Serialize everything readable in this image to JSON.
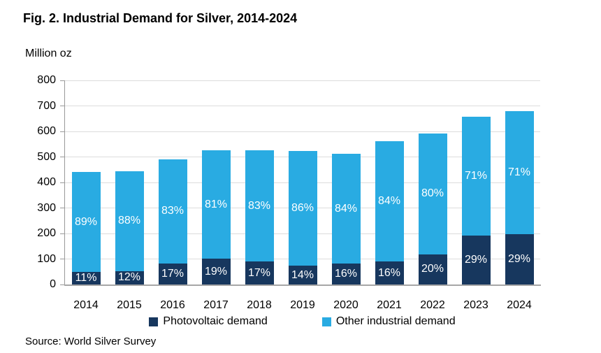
{
  "title": "Fig. 2. Industrial Demand for Silver, 2014-2024",
  "y_axis_unit_label": "Million oz",
  "source": "Source: World Silver Survey",
  "colors": {
    "photovoltaic": "#17375E",
    "other_industrial": "#29ABE2",
    "gridline": "#DCDCDC",
    "axis": "#A6A6A6",
    "bar_label_text": "#FFFFFF"
  },
  "legend": [
    {
      "label": "Photovoltaic demand",
      "color": "#17375E"
    },
    {
      "label": "Other industrial demand",
      "color": "#29ABE2"
    }
  ],
  "chart_data": {
    "type": "bar",
    "stacked": true,
    "title": "Fig. 2. Industrial Demand for Silver, 2014-2024",
    "xlabel": "",
    "ylabel": "Million oz",
    "ylim": [
      0,
      800
    ],
    "ytick_interval": 100,
    "yticks": [
      0,
      100,
      200,
      300,
      400,
      500,
      600,
      700,
      800
    ],
    "grid": true,
    "legend_position": "bottom",
    "categories": [
      "2014",
      "2015",
      "2016",
      "2017",
      "2018",
      "2019",
      "2020",
      "2021",
      "2022",
      "2023",
      "2024"
    ],
    "totals": [
      441,
      443,
      490,
      527,
      525,
      523,
      511,
      562,
      593,
      657,
      680
    ],
    "series": [
      {
        "name": "Photovoltaic demand",
        "percent": [
          11,
          12,
          17,
          19,
          17,
          14,
          16,
          16,
          20,
          29,
          29
        ],
        "values": [
          49,
          53,
          83,
          100,
          89,
          73,
          82,
          90,
          119,
          190,
          197
        ]
      },
      {
        "name": "Other industrial demand",
        "percent": [
          89,
          88,
          83,
          81,
          83,
          86,
          84,
          84,
          80,
          71,
          71
        ],
        "values": [
          392,
          390,
          407,
          427,
          436,
          450,
          429,
          472,
          474,
          467,
          483
        ]
      }
    ],
    "bar_label_format": "percent of total shown in white inside each segment"
  }
}
